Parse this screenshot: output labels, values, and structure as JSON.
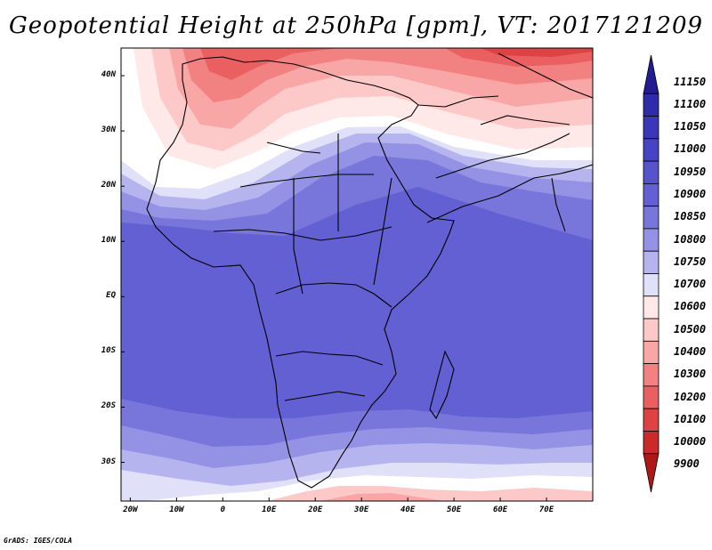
{
  "title": "Geopotential Height at 250hPa [gpm], VT: 2017121209",
  "credit": "GrADS: IGES/COLA",
  "map": {
    "projection": "latlon",
    "lon_range": [
      -22,
      80
    ],
    "lat_range": [
      -37,
      45
    ],
    "lon_ticks": [
      {
        "value": -20,
        "label": "20W"
      },
      {
        "value": -10,
        "label": "10W"
      },
      {
        "value": 0,
        "label": "0"
      },
      {
        "value": 10,
        "label": "10E"
      },
      {
        "value": 20,
        "label": "20E"
      },
      {
        "value": 30,
        "label": "30E"
      },
      {
        "value": 40,
        "label": "40E"
      },
      {
        "value": 50,
        "label": "50E"
      },
      {
        "value": 60,
        "label": "60E"
      },
      {
        "value": 70,
        "label": "70E"
      }
    ],
    "lat_ticks": [
      {
        "value": 40,
        "label": "40N"
      },
      {
        "value": 30,
        "label": "30N"
      },
      {
        "value": 20,
        "label": "20N"
      },
      {
        "value": 10,
        "label": "10N"
      },
      {
        "value": 0,
        "label": "EQ"
      },
      {
        "value": -10,
        "label": "10S"
      },
      {
        "value": -20,
        "label": "20S"
      },
      {
        "value": -30,
        "label": "30S"
      }
    ]
  },
  "colorbar": {
    "labels": [
      "11150",
      "11100",
      "11050",
      "11000",
      "10950",
      "10900",
      "10850",
      "10800",
      "10750",
      "10700",
      "10600",
      "10500",
      "10400",
      "10300",
      "10200",
      "10100",
      "10000",
      "9900"
    ],
    "colors": [
      "#201e92",
      "#2e2ca8",
      "#3a38b8",
      "#4644c4",
      "#5654cc",
      "#6260d2",
      "#7876da",
      "#9492e4",
      "#b6b4ee",
      "#e0e0f8",
      "#ffe8e8",
      "#fcc8c8",
      "#f8a6a6",
      "#f28282",
      "#ea6060",
      "#de4242",
      "#cc2a2a",
      "#b01818"
    ]
  }
}
